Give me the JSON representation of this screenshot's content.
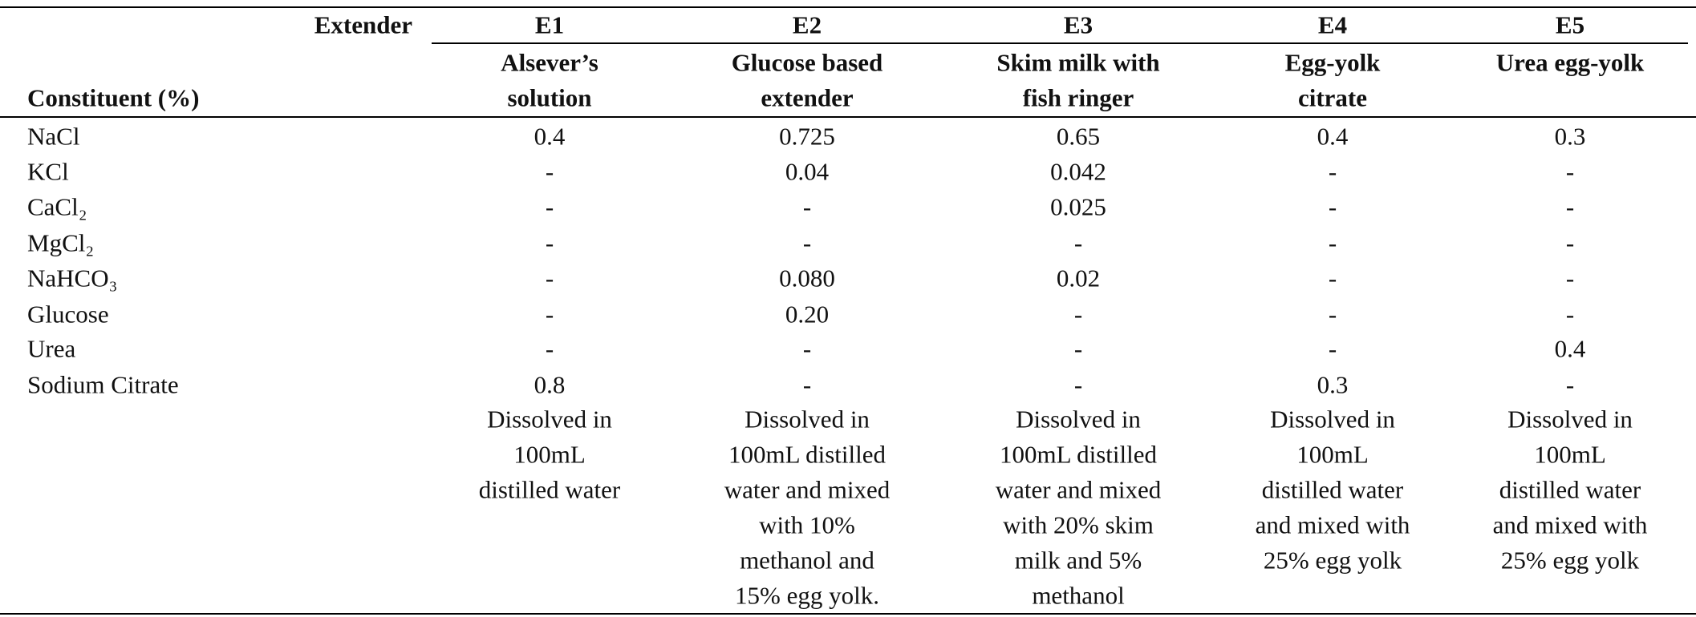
{
  "table": {
    "extender_label": "Extender",
    "constituent_label": "Constituent (%)",
    "columns": [
      {
        "code": "E1",
        "name": [
          "Alsever’s",
          "solution"
        ]
      },
      {
        "code": "E2",
        "name": [
          "Glucose based",
          "extender"
        ]
      },
      {
        "code": "E3",
        "name": [
          "Skim milk with",
          "fish ringer"
        ]
      },
      {
        "code": "E4",
        "name": [
          "Egg-yolk",
          "citrate"
        ]
      },
      {
        "code": "E5",
        "name": [
          "Urea egg-yolk"
        ]
      }
    ],
    "rows": [
      {
        "constituent": "NaCl",
        "values": [
          "0.4",
          "0.725",
          "0.65",
          "0.4",
          "0.3"
        ]
      },
      {
        "constituent": "KCl",
        "values": [
          "-",
          "0.04",
          "0.042",
          "-",
          "-"
        ]
      },
      {
        "constituent": "CaCl₂",
        "values": [
          "-",
          "-",
          "0.025",
          "-",
          "-"
        ]
      },
      {
        "constituent": "MgCl₂",
        "values": [
          "-",
          "-",
          "-",
          "-",
          "-"
        ]
      },
      {
        "constituent": "NaHCO₃",
        "values": [
          "-",
          "0.080",
          "0.02",
          "-",
          "-"
        ]
      },
      {
        "constituent": "Glucose",
        "values": [
          "-",
          "0.20",
          "-",
          "-",
          "-"
        ]
      },
      {
        "constituent": "Urea",
        "values": [
          "-",
          "-",
          "-",
          "-",
          "0.4"
        ]
      },
      {
        "constituent": "Sodium Citrate",
        "values": [
          "0.8",
          "-",
          "-",
          "0.3",
          "-"
        ]
      }
    ],
    "notes": [
      [
        "Dissolved in",
        "100mL",
        "distilled water"
      ],
      [
        "Dissolved in",
        "100mL distilled",
        "water and mixed",
        "with 10%",
        "methanol and",
        "15% egg yolk."
      ],
      [
        "Dissolved in",
        "100mL distilled",
        "water and mixed",
        "with 20% skim",
        "milk and 5%",
        "methanol"
      ],
      [
        "Dissolved in",
        "100mL",
        "distilled water",
        "and mixed with",
        "25% egg yolk"
      ],
      [
        "Dissolved in",
        "100mL",
        "distilled water",
        "and mixed with",
        "25% egg yolk"
      ]
    ]
  }
}
